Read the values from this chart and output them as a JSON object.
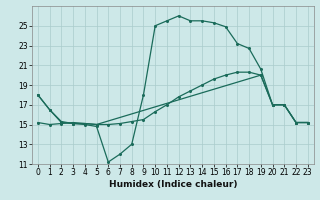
{
  "xlabel": "Humidex (Indice chaleur)",
  "x_ticks": [
    0,
    1,
    2,
    3,
    4,
    5,
    6,
    7,
    8,
    9,
    10,
    11,
    12,
    13,
    14,
    15,
    16,
    17,
    18,
    19,
    20,
    21,
    22,
    23
  ],
  "xlim": [
    -0.5,
    23.5
  ],
  "ylim": [
    11,
    27
  ],
  "y_ticks": [
    11,
    13,
    15,
    17,
    19,
    21,
    23,
    25
  ],
  "background_color": "#cde8e8",
  "grid_color": "#aacccc",
  "line_color": "#1a6b5a",
  "line1_x": [
    0,
    1,
    2,
    3,
    4,
    5,
    6,
    7,
    8,
    9,
    10,
    11,
    12,
    13,
    14,
    15,
    16,
    17,
    18,
    19,
    20,
    21,
    22,
    23
  ],
  "line1_y": [
    18.0,
    16.5,
    15.2,
    15.1,
    15.0,
    14.8,
    11.2,
    12.0,
    13.0,
    18.0,
    25.0,
    25.5,
    26.0,
    25.5,
    25.5,
    25.3,
    24.9,
    23.2,
    22.7,
    20.6,
    17.0,
    17.0,
    15.2,
    15.2
  ],
  "line2_x": [
    0,
    1,
    2,
    3,
    4,
    5,
    19,
    20,
    21,
    22,
    23
  ],
  "line2_y": [
    18.0,
    16.5,
    15.3,
    15.1,
    15.1,
    15.0,
    20.0,
    17.0,
    17.0,
    15.2,
    15.2
  ],
  "line3_x": [
    0,
    1,
    2,
    3,
    4,
    5,
    6,
    7,
    8,
    9,
    10,
    11,
    12,
    13,
    14,
    15,
    16,
    17,
    18,
    19,
    20,
    21,
    22,
    23
  ],
  "line3_y": [
    15.2,
    15.0,
    15.1,
    15.2,
    15.1,
    15.0,
    15.0,
    15.1,
    15.3,
    15.5,
    16.3,
    17.0,
    17.8,
    18.4,
    19.0,
    19.6,
    20.0,
    20.3,
    20.3,
    20.0,
    17.0,
    17.0,
    15.2,
    15.2
  ]
}
